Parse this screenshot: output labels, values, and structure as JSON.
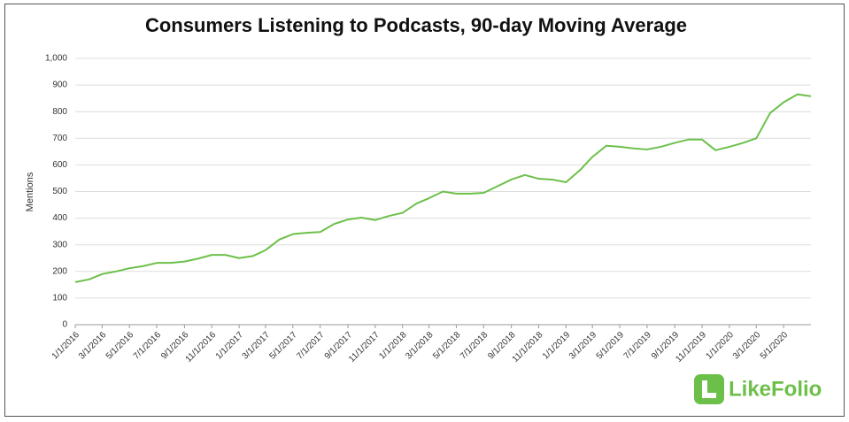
{
  "chart_data": {
    "type": "line",
    "title": "Consumers Listening to Podcasts, 90-day Moving Average",
    "y_label": "Mentions",
    "logo": "LikeFolio",
    "x": [
      "1/1/2016",
      "2/1/2016",
      "3/1/2016",
      "4/1/2016",
      "5/1/2016",
      "6/1/2016",
      "7/1/2016",
      "8/1/2016",
      "9/1/2016",
      "10/1/2016",
      "11/1/2016",
      "12/1/2016",
      "1/1/2017",
      "2/1/2017",
      "3/1/2017",
      "4/1/2017",
      "5/1/2017",
      "6/1/2017",
      "7/1/2017",
      "8/1/2017",
      "9/1/2017",
      "10/1/2017",
      "11/1/2017",
      "12/1/2017",
      "1/1/2018",
      "2/1/2018",
      "3/1/2018",
      "4/1/2018",
      "5/1/2018",
      "6/1/2018",
      "7/1/2018",
      "8/1/2018",
      "9/1/2018",
      "10/1/2018",
      "11/1/2018",
      "12/1/2018",
      "1/1/2019",
      "2/1/2019",
      "3/1/2019",
      "4/1/2019",
      "5/1/2019",
      "6/1/2019",
      "7/1/2019",
      "8/1/2019",
      "9/1/2019",
      "10/1/2019",
      "11/1/2019",
      "12/1/2019",
      "1/1/2020",
      "2/1/2020",
      "3/1/2020",
      "4/1/2020",
      "5/1/2020",
      "6/1/2020",
      "7/1/2020"
    ],
    "series": [
      {
        "name": "Mentions",
        "color": "#6cc04a",
        "values": [
          160,
          170,
          190,
          200,
          212,
          220,
          232,
          232,
          237,
          248,
          262,
          262,
          250,
          258,
          280,
          320,
          340,
          345,
          348,
          378,
          395,
          402,
          393,
          408,
          420,
          455,
          475,
          500,
          492,
          492,
          495,
          520,
          545,
          562,
          548,
          545,
          535,
          580,
          630,
          672,
          668,
          662,
          658,
          668,
          683,
          695,
          695,
          655,
          668,
          683,
          700,
          795,
          835,
          865,
          858
        ]
      }
    ],
    "xlim": [
      "1/1/2016",
      "7/1/2020"
    ],
    "xticks": [
      "1/1/2016",
      "3/1/2016",
      "5/1/2016",
      "7/1/2016",
      "9/1/2016",
      "11/1/2016",
      "1/1/2017",
      "3/1/2017",
      "5/1/2017",
      "7/1/2017",
      "9/1/2017",
      "11/1/2017",
      "1/1/2018",
      "3/1/2018",
      "5/1/2018",
      "7/1/2018",
      "9/1/2018",
      "11/1/2018",
      "1/1/2019",
      "3/1/2019",
      "5/1/2019",
      "7/1/2019",
      "9/1/2019",
      "11/1/2019",
      "1/1/2020",
      "3/1/2020",
      "5/1/2020"
    ],
    "ylim": [
      0,
      1000
    ],
    "yticks": [
      0,
      100,
      200,
      300,
      400,
      500,
      600,
      700,
      800,
      {
        "value": 900,
        "label": "900"
      },
      {
        "value": 1000,
        "label": "1,000"
      }
    ],
    "grid": true
  }
}
